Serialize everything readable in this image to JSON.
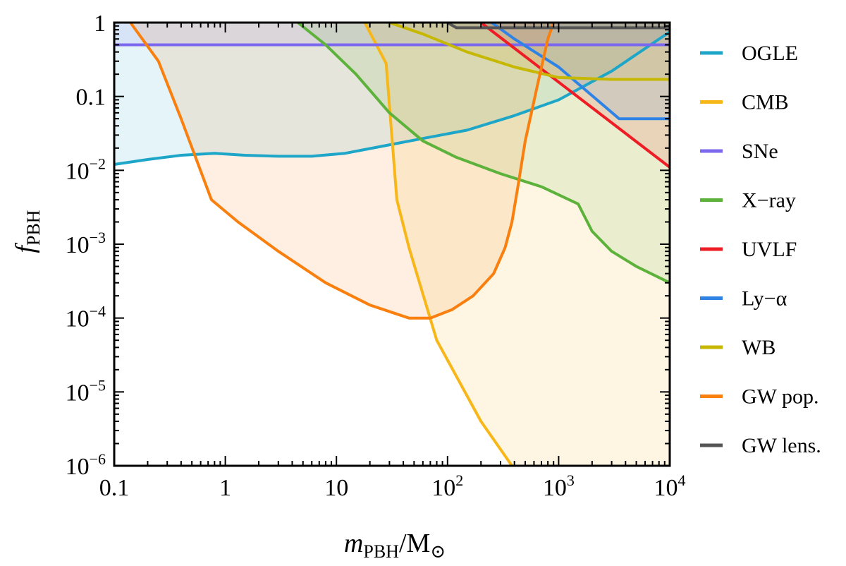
{
  "chart_data": {
    "type": "line",
    "title": "",
    "xscale": "log",
    "yscale": "log",
    "xlim": [
      0.1,
      10000
    ],
    "ylim": [
      1e-06,
      1
    ],
    "x_ticks": [
      {
        "value": 0.1,
        "base": "0.1",
        "exp": ""
      },
      {
        "value": 1,
        "base": "1",
        "exp": ""
      },
      {
        "value": 10,
        "base": "10",
        "exp": ""
      },
      {
        "value": 100,
        "base": "10",
        "exp": "2"
      },
      {
        "value": 1000,
        "base": "10",
        "exp": "3"
      },
      {
        "value": 10000,
        "base": "10",
        "exp": "4"
      }
    ],
    "y_ticks": [
      {
        "value": 1,
        "base": "1",
        "exp": ""
      },
      {
        "value": 0.1,
        "base": "0.1",
        "exp": ""
      },
      {
        "value": 0.01,
        "base": "10",
        "exp": "−2"
      },
      {
        "value": 0.001,
        "base": "10",
        "exp": "−3"
      },
      {
        "value": 0.0001,
        "base": "10",
        "exp": "−4"
      },
      {
        "value": 1e-05,
        "base": "10",
        "exp": "−5"
      },
      {
        "value": 1e-06,
        "base": "10",
        "exp": "−6"
      }
    ],
    "xlabel": {
      "main": "m",
      "sub": "PBH",
      "rest": "/M",
      "sub2": "⊙"
    },
    "ylabel": {
      "main": "f",
      "sub": "PBH"
    },
    "legend_position": "right",
    "series": [
      {
        "name": "OGLE",
        "color": "#1ea6c8",
        "fill_opacity": 0.12,
        "points": [
          [
            0.1,
            0.012
          ],
          [
            0.2,
            0.014
          ],
          [
            0.4,
            0.016
          ],
          [
            0.8,
            0.017
          ],
          [
            1.5,
            0.016
          ],
          [
            3,
            0.0155
          ],
          [
            6,
            0.0155
          ],
          [
            12,
            0.017
          ],
          [
            25,
            0.021
          ],
          [
            60,
            0.027
          ],
          [
            150,
            0.035
          ],
          [
            400,
            0.055
          ],
          [
            1000,
            0.09
          ],
          [
            3000,
            0.22
          ],
          [
            10000,
            0.75
          ]
        ]
      },
      {
        "name": "CMB",
        "color": "#f7b719",
        "fill_opacity": 0.12,
        "points": [
          [
            18,
            1
          ],
          [
            28,
            0.28
          ],
          [
            35,
            0.004
          ],
          [
            45,
            0.0009
          ],
          [
            80,
            5e-05
          ],
          [
            200,
            4e-06
          ],
          [
            380,
            1e-06
          ]
        ]
      },
      {
        "name": "SNe",
        "color": "#7b68ee",
        "fill_opacity": 0.12,
        "points": [
          [
            0.1,
            0.5
          ],
          [
            10000,
            0.5
          ]
        ]
      },
      {
        "name": "X−ray",
        "color": "#5cb23a",
        "fill_opacity": 0.12,
        "points": [
          [
            4.5,
            1
          ],
          [
            8,
            0.5
          ],
          [
            15,
            0.2
          ],
          [
            30,
            0.06
          ],
          [
            60,
            0.025
          ],
          [
            120,
            0.015
          ],
          [
            300,
            0.009
          ],
          [
            700,
            0.006
          ],
          [
            1500,
            0.0035
          ],
          [
            2000,
            0.0015
          ],
          [
            3000,
            0.0008
          ],
          [
            5000,
            0.0005
          ],
          [
            10000,
            0.0003
          ]
        ]
      },
      {
        "name": "UVLF",
        "color": "#ee1c25",
        "fill_opacity": 0.12,
        "points": [
          [
            200,
            1
          ],
          [
            10000,
            0.011
          ]
        ]
      },
      {
        "name": "Ly−α",
        "color": "#2f83e4",
        "fill_opacity": 0.12,
        "points": [
          [
            250,
            1
          ],
          [
            400,
            0.6
          ],
          [
            1000,
            0.25
          ],
          [
            3500,
            0.05
          ],
          [
            10000,
            0.05
          ]
        ]
      },
      {
        "name": "WB",
        "color": "#c6b800",
        "fill_opacity": 0.12,
        "points": [
          [
            30,
            1
          ],
          [
            60,
            0.7
          ],
          [
            150,
            0.4
          ],
          [
            400,
            0.25
          ],
          [
            1000,
            0.18
          ],
          [
            3000,
            0.17
          ],
          [
            10000,
            0.17
          ]
        ]
      },
      {
        "name": "GW pop.",
        "color": "#f97f0e",
        "fill_opacity": 0.12,
        "points": [
          [
            0.14,
            1
          ],
          [
            0.25,
            0.3
          ],
          [
            0.4,
            0.05
          ],
          [
            0.75,
            0.004
          ],
          [
            1.3,
            0.002
          ],
          [
            3,
            0.0008
          ],
          [
            8,
            0.0003
          ],
          [
            20,
            0.00015
          ],
          [
            45,
            0.0001
          ],
          [
            70,
            0.0001
          ],
          [
            110,
            0.00013
          ],
          [
            170,
            0.0002
          ],
          [
            260,
            0.0004
          ],
          [
            330,
            0.0009
          ],
          [
            380,
            0.002
          ],
          [
            430,
            0.006
          ],
          [
            500,
            0.025
          ],
          [
            650,
            0.15
          ],
          [
            800,
            0.6
          ],
          [
            900,
            1
          ]
        ]
      },
      {
        "name": "GW lens.",
        "color": "#555555",
        "fill_opacity": 0.18,
        "points": [
          [
            100,
            1
          ],
          [
            120,
            0.85
          ],
          [
            10000,
            0.85
          ]
        ]
      }
    ]
  }
}
